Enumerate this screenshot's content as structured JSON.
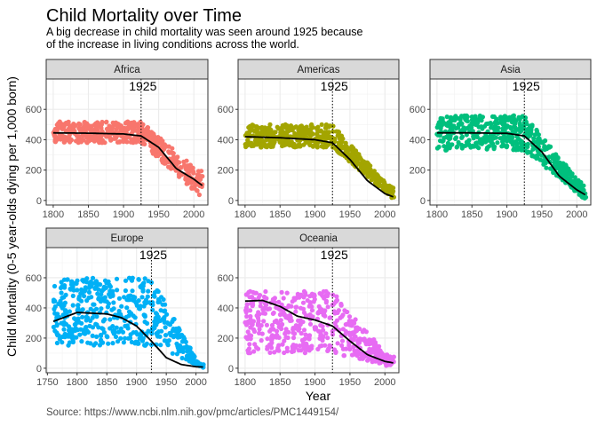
{
  "title": "Child Mortality over Time",
  "subtitle_lines": [
    "A big decrease in child mortality was seen around 1925 because",
    "of the increase in living conditions across the world."
  ],
  "caption": "Source: https://www.ncbi.nlm.nih.gov/pmc/articles/PMC1449154/",
  "chart_data": {
    "type": "scatter",
    "facet_by": "region",
    "xlabel": "Year",
    "ylabel": "Child Mortality (0-5 year-olds dying per 1,000 born)",
    "ylim": [
      -30,
      800
    ],
    "y_ticks": [
      0,
      200,
      400,
      600
    ],
    "grid": true,
    "legend": "none",
    "annotation": {
      "x": 1925,
      "label": "1925",
      "line": "dotted vertical"
    },
    "trend_line": {
      "color": "#000000",
      "type": "smoothed"
    },
    "facets": [
      {
        "name": "Africa",
        "color": "#F8766D",
        "xlim": [
          1790,
          2020
        ],
        "x_ticks": [
          1800,
          1850,
          1900,
          1950,
          2000
        ],
        "points_summary": {
          "x_range": [
            1800,
            2013
          ],
          "band_before_1925": [
            380,
            520
          ],
          "end_range": [
            10,
            200
          ]
        },
        "trend": [
          [
            1800,
            445
          ],
          [
            1850,
            443
          ],
          [
            1900,
            438
          ],
          [
            1925,
            425
          ],
          [
            1950,
            350
          ],
          [
            1975,
            210
          ],
          [
            2000,
            140
          ],
          [
            2013,
            95
          ]
        ]
      },
      {
        "name": "Americas",
        "color": "#A3A500",
        "xlim": [
          1790,
          2020
        ],
        "x_ticks": [
          1800,
          1850,
          1900,
          1950,
          2000
        ],
        "points_summary": {
          "x_range": [
            1800,
            2013
          ],
          "band_before_1925": [
            350,
            500
          ],
          "end_range": [
            5,
            100
          ]
        },
        "trend": [
          [
            1800,
            420
          ],
          [
            1850,
            413
          ],
          [
            1900,
            400
          ],
          [
            1925,
            380
          ],
          [
            1950,
            270
          ],
          [
            1975,
            130
          ],
          [
            2000,
            45
          ],
          [
            2013,
            22
          ]
        ]
      },
      {
        "name": "Asia",
        "color": "#00BF7D",
        "xlim": [
          1790,
          2020
        ],
        "x_ticks": [
          1800,
          1850,
          1900,
          1950,
          2000
        ],
        "points_summary": {
          "x_range": [
            1800,
            2013
          ],
          "band_before_1925": [
            330,
            560
          ],
          "end_range": [
            3,
            120
          ]
        },
        "trend": [
          [
            1800,
            445
          ],
          [
            1850,
            445
          ],
          [
            1900,
            442
          ],
          [
            1925,
            425
          ],
          [
            1950,
            320
          ],
          [
            1975,
            160
          ],
          [
            2000,
            70
          ],
          [
            2013,
            35
          ]
        ]
      },
      {
        "name": "Europe",
        "color": "#00B0F6",
        "xlim": [
          1748,
          2020
        ],
        "x_ticks": [
          1750,
          1800,
          1850,
          1900,
          1950,
          2000
        ],
        "points_summary": {
          "x_range": [
            1760,
            2013
          ],
          "band_before_1925": [
            150,
            600
          ],
          "end_range": [
            2,
            30
          ]
        },
        "trend": [
          [
            1760,
            310
          ],
          [
            1800,
            370
          ],
          [
            1850,
            360
          ],
          [
            1875,
            335
          ],
          [
            1900,
            280
          ],
          [
            1925,
            180
          ],
          [
            1950,
            70
          ],
          [
            1975,
            25
          ],
          [
            2000,
            10
          ],
          [
            2013,
            8
          ]
        ]
      },
      {
        "name": "Oceania",
        "color": "#E76BF3",
        "xlim": [
          1790,
          2020
        ],
        "x_ticks": [
          1800,
          1850,
          1900,
          1950,
          2000
        ],
        "points_summary": {
          "x_range": [
            1800,
            2013
          ],
          "band_before_1925": [
            100,
            510
          ],
          "end_range": [
            5,
            80
          ]
        },
        "trend": [
          [
            1800,
            445
          ],
          [
            1825,
            450
          ],
          [
            1850,
            410
          ],
          [
            1875,
            345
          ],
          [
            1900,
            320
          ],
          [
            1925,
            280
          ],
          [
            1950,
            180
          ],
          [
            1975,
            90
          ],
          [
            2000,
            45
          ],
          [
            2013,
            35
          ]
        ]
      }
    ]
  }
}
